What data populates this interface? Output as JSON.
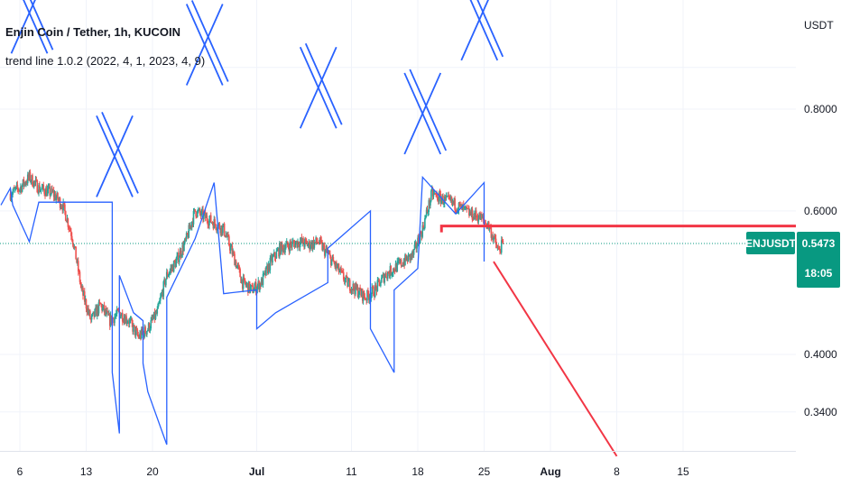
{
  "title": "Enjin Coin / Tether, 1h, KUCOIN",
  "indicator": "trend line 1.0.2 (2022, 4, 1, 2023, 4, 9)",
  "currency": "USDT",
  "price_tag": {
    "symbol": "ENJUSDT",
    "price": "0.5473",
    "countdown": "18:05"
  },
  "colors": {
    "bull": "#26a69a",
    "bear": "#ef5350",
    "trend": "#2962ff",
    "hline": "#f23645",
    "price_line": "#089981"
  },
  "chart_data": {
    "type": "candlestick",
    "symbol": "ENJUSDT",
    "timeframe": "1h",
    "exchange": "KUCOIN",
    "scale": "log",
    "grid": true,
    "y_ticks": [
      "0.8000",
      "0.6000",
      "0.4000",
      "0.3400"
    ],
    "x_ticks": [
      "6",
      "13",
      "20",
      "Jul",
      "11",
      "18",
      "25",
      "Aug",
      "8",
      "15"
    ],
    "ylim": [
      0.3,
      1.2
    ],
    "last_price": 0.5473,
    "close_path": [
      {
        "t": "2022-06-05 00:00",
        "v": 0.63
      },
      {
        "t": "2022-06-06 00:00",
        "v": 0.64
      },
      {
        "t": "2022-06-07 00:00",
        "v": 0.66
      },
      {
        "t": "2022-06-08 00:00",
        "v": 0.64
      },
      {
        "t": "2022-06-09 12:00",
        "v": 0.63
      },
      {
        "t": "2022-06-10 12:00",
        "v": 0.61
      },
      {
        "t": "2022-06-11 12:00",
        "v": 0.56
      },
      {
        "t": "2022-06-12 12:00",
        "v": 0.48
      },
      {
        "t": "2022-06-13 12:00",
        "v": 0.44
      },
      {
        "t": "2022-06-14 12:00",
        "v": 0.46
      },
      {
        "t": "2022-06-15 12:00",
        "v": 0.44
      },
      {
        "t": "2022-06-16 12:00",
        "v": 0.45
      },
      {
        "t": "2022-06-17 12:00",
        "v": 0.44
      },
      {
        "t": "2022-06-18 12:00",
        "v": 0.42
      },
      {
        "t": "2022-06-19 12:00",
        "v": 0.43
      },
      {
        "t": "2022-06-20 12:00",
        "v": 0.45
      },
      {
        "t": "2022-06-21 12:00",
        "v": 0.5
      },
      {
        "t": "2022-06-22 12:00",
        "v": 0.52
      },
      {
        "t": "2022-06-23 12:00",
        "v": 0.55
      },
      {
        "t": "2022-06-24 12:00",
        "v": 0.6
      },
      {
        "t": "2022-06-25 12:00",
        "v": 0.59
      },
      {
        "t": "2022-06-26 12:00",
        "v": 0.58
      },
      {
        "t": "2022-06-27 12:00",
        "v": 0.57
      },
      {
        "t": "2022-06-28 12:00",
        "v": 0.53
      },
      {
        "t": "2022-06-29 12:00",
        "v": 0.49
      },
      {
        "t": "2022-06-30 12:00",
        "v": 0.48
      },
      {
        "t": "2022-07-01 12:00",
        "v": 0.49
      },
      {
        "t": "2022-07-02 12:00",
        "v": 0.52
      },
      {
        "t": "2022-07-03 12:00",
        "v": 0.54
      },
      {
        "t": "2022-07-04 12:00",
        "v": 0.545
      },
      {
        "t": "2022-07-05 12:00",
        "v": 0.55
      },
      {
        "t": "2022-07-06 12:00",
        "v": 0.545
      },
      {
        "t": "2022-07-07 12:00",
        "v": 0.55
      },
      {
        "t": "2022-07-08 12:00",
        "v": 0.53
      },
      {
        "t": "2022-07-09 12:00",
        "v": 0.51
      },
      {
        "t": "2022-07-10 12:00",
        "v": 0.49
      },
      {
        "t": "2022-07-11 12:00",
        "v": 0.48
      },
      {
        "t": "2022-07-12 12:00",
        "v": 0.47
      },
      {
        "t": "2022-07-13 12:00",
        "v": 0.48
      },
      {
        "t": "2022-07-14 12:00",
        "v": 0.5
      },
      {
        "t": "2022-07-15 12:00",
        "v": 0.51
      },
      {
        "t": "2022-07-16 12:00",
        "v": 0.52
      },
      {
        "t": "2022-07-17 12:00",
        "v": 0.53
      },
      {
        "t": "2022-07-18 12:00",
        "v": 0.57
      },
      {
        "t": "2022-07-19 12:00",
        "v": 0.63
      },
      {
        "t": "2022-07-20 12:00",
        "v": 0.62
      },
      {
        "t": "2022-07-21 12:00",
        "v": 0.615
      },
      {
        "t": "2022-07-22 12:00",
        "v": 0.605
      },
      {
        "t": "2022-07-23 12:00",
        "v": 0.595
      },
      {
        "t": "2022-07-24 12:00",
        "v": 0.59
      },
      {
        "t": "2022-07-25 12:00",
        "v": 0.575
      },
      {
        "t": "2022-07-26 12:00",
        "v": 0.535
      },
      {
        "t": "2022-07-27 00:00",
        "v": 0.5473
      }
    ],
    "series": [
      {
        "type": "trend_line",
        "color": "#2962ff",
        "points": [
          {
            "t": "2022-06-04 00:00",
            "v": 0.61
          },
          {
            "t": "2022-06-05 00:00",
            "v": 0.64
          },
          {
            "t": "2022-06-05 06:00",
            "v": 0.61
          },
          {
            "t": "2022-06-07 00:00",
            "v": 0.55
          },
          {
            "t": "2022-06-08 00:00",
            "v": 0.615
          },
          {
            "t": "2022-06-15 18:00",
            "v": 0.615
          },
          {
            "t": "2022-06-15 18:00",
            "v": 0.38
          },
          {
            "t": "2022-06-16 12:00",
            "v": 0.32
          },
          {
            "t": "2022-06-16 12:00",
            "v": 0.5
          },
          {
            "t": "2022-06-18 00:00",
            "v": 0.45
          },
          {
            "t": "2022-06-19 00:00",
            "v": 0.44
          },
          {
            "t": "2022-06-19 00:00",
            "v": 0.39
          },
          {
            "t": "2022-06-19 12:00",
            "v": 0.36
          },
          {
            "t": "2022-06-21 12:00",
            "v": 0.31
          },
          {
            "t": "2022-06-21 12:00",
            "v": 0.47
          },
          {
            "t": "2022-06-24 12:00",
            "v": 0.555
          },
          {
            "t": "2022-06-26 12:00",
            "v": 0.65
          },
          {
            "t": "2022-06-27 12:00",
            "v": 0.475
          },
          {
            "t": "2022-07-01 00:00",
            "v": 0.48
          },
          {
            "t": "2022-07-01 00:00",
            "v": 0.43
          },
          {
            "t": "2022-07-03 00:00",
            "v": 0.45
          },
          {
            "t": "2022-07-08 12:00",
            "v": 0.49
          },
          {
            "t": "2022-07-08 12:00",
            "v": 0.54
          },
          {
            "t": "2022-07-13 00:00",
            "v": 0.6
          },
          {
            "t": "2022-07-13 00:00",
            "v": 0.43
          },
          {
            "t": "2022-07-15 12:00",
            "v": 0.38
          },
          {
            "t": "2022-07-15 12:00",
            "v": 0.48
          },
          {
            "t": "2022-07-18 00:00",
            "v": 0.51
          },
          {
            "t": "2022-07-18 12:00",
            "v": 0.66
          },
          {
            "t": "2022-07-22 00:00",
            "v": 0.595
          },
          {
            "t": "2022-07-25 00:00",
            "v": 0.65
          },
          {
            "t": "2022-07-25 00:00",
            "v": 0.52
          }
        ]
      },
      {
        "type": "horizontal_line",
        "color": "#f23645",
        "from": "2022-07-20 12:00",
        "value": 0.575
      },
      {
        "type": "ray",
        "color": "#f23645",
        "points": [
          {
            "t": "2022-07-26 00:00",
            "v": 0.52
          },
          {
            "t": "2022-08-08 00:00",
            "v": 0.3
          }
        ]
      },
      {
        "type": "x_marks",
        "color": "#2962ff",
        "centers": [
          {
            "t": "2022-06-07 00:00",
            "v": 1.05
          },
          {
            "t": "2022-06-16 00:00",
            "v": 0.7
          },
          {
            "t": "2022-06-25 12:00",
            "v": 0.96
          },
          {
            "t": "2022-07-07 12:00",
            "v": 0.85
          },
          {
            "t": "2022-07-18 12:00",
            "v": 0.79
          },
          {
            "t": "2022-07-24 12:00",
            "v": 1.03
          }
        ]
      }
    ]
  }
}
